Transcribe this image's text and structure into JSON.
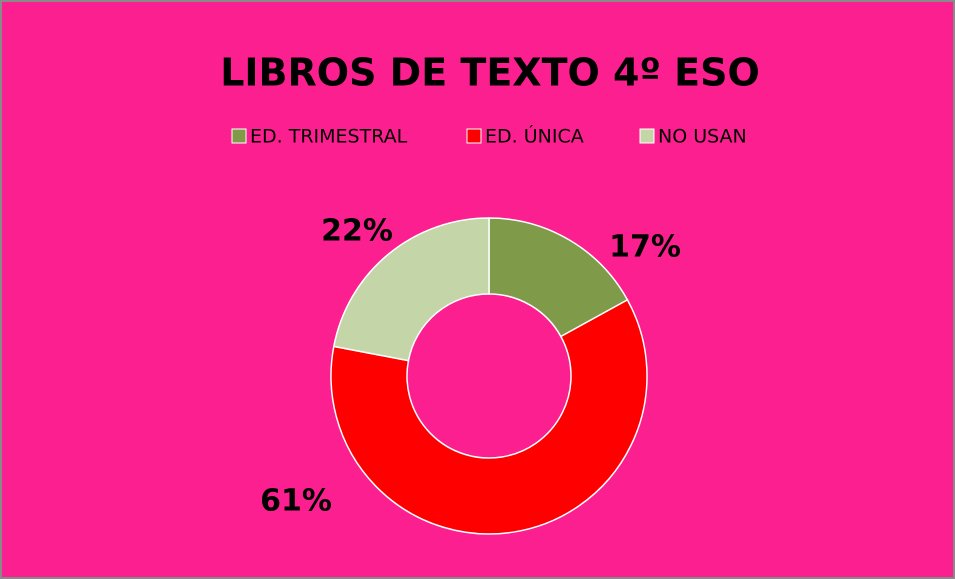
{
  "chart_data": {
    "type": "donut",
    "title": "LIBROS DE TEXTO 4º ESO",
    "categories": [
      "ED. TRIMESTRAL",
      "ED. ÚNICA",
      "NO USAN"
    ],
    "values": [
      17,
      61,
      22
    ],
    "value_labels": [
      "17%",
      "61%",
      "22%"
    ],
    "colors": [
      "#7f9b4a",
      "#ff0000",
      "#c4d6a8"
    ],
    "legend": "top"
  }
}
